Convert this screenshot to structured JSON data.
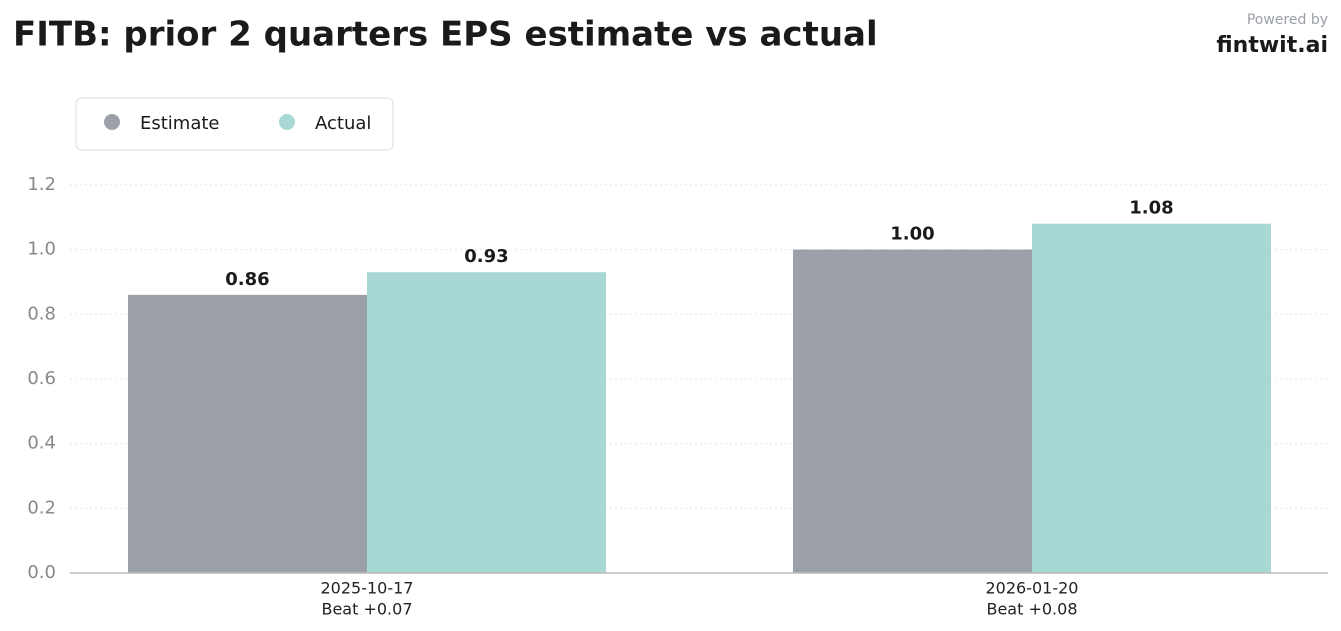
{
  "chart_data": {
    "type": "bar",
    "title": "FITB: prior 2 quarters EPS estimate vs actual",
    "watermark": {
      "caption": "Powered by",
      "brand": "fintwit.ai"
    },
    "categories": [
      "2025-10-17",
      "2026-01-20"
    ],
    "category_sublabels": [
      "Beat +0.07",
      "Beat +0.08"
    ],
    "series": [
      {
        "name": "Estimate",
        "color": "#9ca0a8",
        "values": [
          0.86,
          1
        ],
        "value_labels": [
          "0.86",
          "1.00"
        ]
      },
      {
        "name": "Actual",
        "color": "#a8d8d4",
        "values": [
          0.93,
          1.08
        ],
        "value_labels": [
          "0.93",
          "1.08"
        ]
      }
    ],
    "ylim": [
      0,
      1.28
    ],
    "yticks": [
      {
        "value": 0,
        "label": "0.0"
      },
      0.2,
      0.4,
      0.6,
      0.8,
      {
        "value": 1,
        "label": "1.0"
      },
      1.2
    ],
    "grid": true,
    "legend": "upper-left"
  }
}
